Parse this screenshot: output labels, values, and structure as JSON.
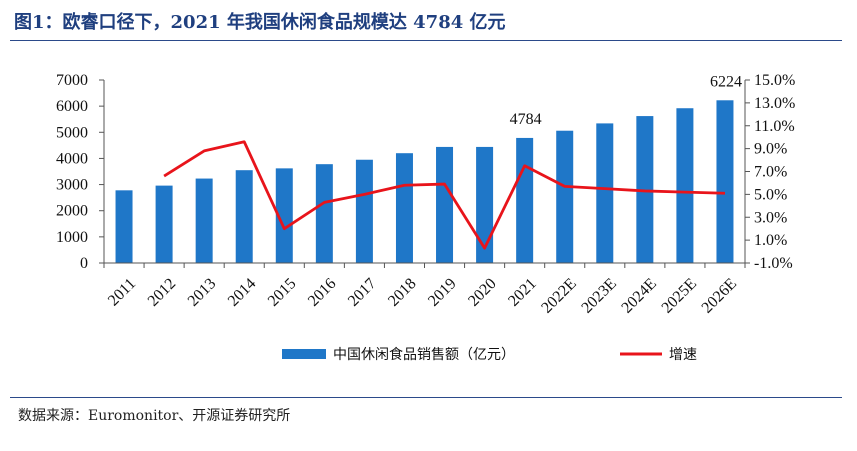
{
  "figure": {
    "title": "图1：欧睿口径下，2021 年我国休闲食品规模达 4784 亿元",
    "source": "数据来源：Euromonitor、开源证券研究所"
  },
  "chart_data": {
    "type": "bar",
    "categories": [
      "2011",
      "2012",
      "2013",
      "2014",
      "2015",
      "2016",
      "2017",
      "2018",
      "2019",
      "2020",
      "2021",
      "2022E",
      "2023E",
      "2024E",
      "2025E",
      "2026E"
    ],
    "series": [
      {
        "name": "中国休闲食品销售额（亿元）",
        "type": "bar",
        "axis": "left",
        "color": "#1f77c8",
        "values": [
          2780,
          2960,
          3230,
          3550,
          3620,
          3780,
          3950,
          4200,
          4440,
          4440,
          4784,
          5060,
          5340,
          5620,
          5920,
          6224
        ]
      },
      {
        "name": "增速",
        "type": "line",
        "axis": "right",
        "color": "#e8141b",
        "x": [
          "2012",
          "2013",
          "2014",
          "2015",
          "2016",
          "2017",
          "2018",
          "2019",
          "2020",
          "2021",
          "2022E",
          "2023E",
          "2024E",
          "2025E",
          "2026E"
        ],
        "values": [
          6.6,
          8.8,
          9.6,
          2.0,
          4.3,
          5.0,
          5.8,
          5.9,
          0.3,
          7.5,
          5.7,
          5.5,
          5.3,
          5.2,
          5.1
        ]
      }
    ],
    "data_labels": [
      {
        "category": "2021",
        "text": "4784"
      },
      {
        "category": "2026E",
        "text": "6224"
      }
    ],
    "y_left": {
      "min": 0,
      "max": 7000,
      "ticks": [
        "0",
        "1000",
        "2000",
        "3000",
        "4000",
        "5000",
        "6000",
        "7000"
      ]
    },
    "y_right": {
      "min": -1.0,
      "max": 15.0,
      "ticks": [
        "-1.0%",
        "1.0%",
        "3.0%",
        "5.0%",
        "7.0%",
        "9.0%",
        "11.0%",
        "13.0%",
        "15.0%"
      ]
    },
    "grid": false,
    "legend_position": "bottom"
  }
}
